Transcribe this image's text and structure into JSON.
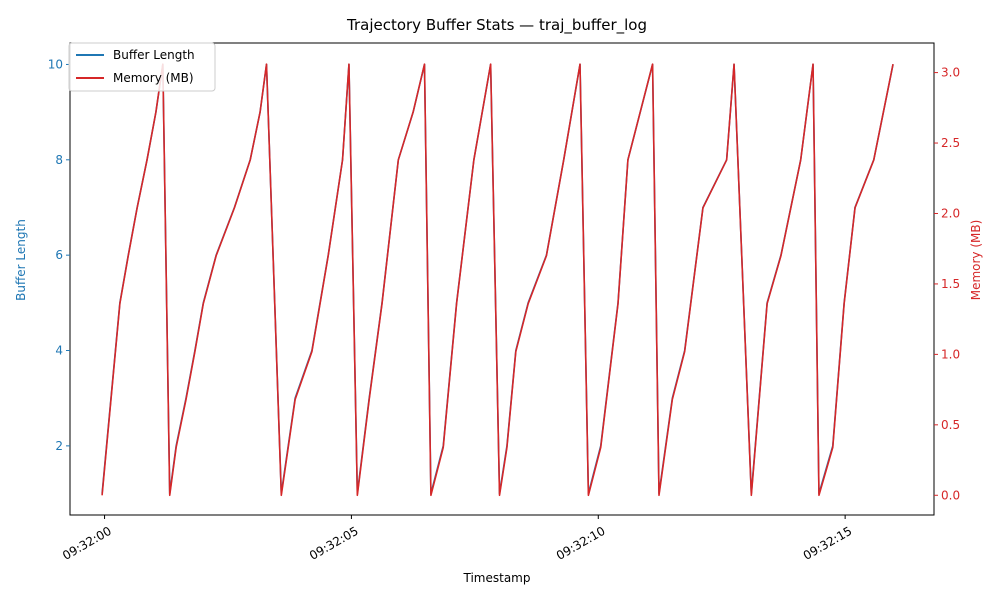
{
  "chart_data": {
    "type": "line",
    "title": "Trajectory Buffer Stats — traj_buffer_log",
    "xlabel": "Timestamp",
    "ylabel_left": "Buffer Length",
    "ylabel_right": "Memory (MB)",
    "x_unit": "seconds after 09:32:00",
    "xlim": [
      -0.7,
      16.8
    ],
    "ylim_left": [
      0.55,
      10.45
    ],
    "ylim_right": [
      -0.14,
      3.21
    ],
    "x_ticks": [
      {
        "value": 0,
        "label": "09:32:00"
      },
      {
        "value": 5,
        "label": "09:32:05"
      },
      {
        "value": 10,
        "label": "09:32:10"
      },
      {
        "value": 15,
        "label": "09:32:15"
      }
    ],
    "y_ticks_left": [
      {
        "value": 2,
        "label": "2"
      },
      {
        "value": 4,
        "label": "4"
      },
      {
        "value": 6,
        "label": "6"
      },
      {
        "value": 8,
        "label": "8"
      },
      {
        "value": 10,
        "label": "10"
      }
    ],
    "y_ticks_right": [
      {
        "value": 0.0,
        "label": "0.0"
      },
      {
        "value": 0.5,
        "label": "0.5"
      },
      {
        "value": 1.0,
        "label": "1.0"
      },
      {
        "value": 1.5,
        "label": "1.5"
      },
      {
        "value": 2.0,
        "label": "2.0"
      },
      {
        "value": 2.5,
        "label": "2.5"
      },
      {
        "value": 3.0,
        "label": "3.0"
      }
    ],
    "legend": {
      "placement": "upper-left"
    },
    "colors": {
      "buffer": "#1f77b4",
      "memory": "#d62728"
    },
    "series": [
      {
        "name": "Buffer Length",
        "axis": "left",
        "x": [
          -0.05,
          0.13,
          0.31,
          0.48,
          0.66,
          0.86,
          1.04,
          1.18,
          1.32,
          1.45,
          1.65,
          1.83,
          2.0,
          2.26,
          2.63,
          2.95,
          3.15,
          3.28,
          3.58,
          3.86,
          4.2,
          4.53,
          4.82,
          4.95,
          5.12,
          5.36,
          5.62,
          5.95,
          6.25,
          6.48,
          6.61,
          6.86,
          7.13,
          7.48,
          7.82,
          8.0,
          8.15,
          8.33,
          8.58,
          8.95,
          9.3,
          9.63,
          9.8,
          10.05,
          10.4,
          10.6,
          11.1,
          11.23,
          11.5,
          11.75,
          12.12,
          12.6,
          12.75,
          13.1,
          13.42,
          13.7,
          14.1,
          14.35,
          14.47,
          14.75,
          14.98,
          15.2,
          15.58,
          15.97
        ],
        "y": [
          1,
          3,
          5,
          6,
          7,
          8,
          9,
          10,
          1,
          2,
          3,
          4,
          5,
          6,
          7,
          8,
          9,
          10,
          1,
          3,
          4,
          6,
          8,
          10,
          1,
          3,
          5,
          8,
          9,
          10,
          1,
          2,
          5,
          8,
          10,
          1,
          2,
          4,
          5,
          6,
          8,
          10,
          1,
          2,
          5,
          8,
          10,
          1,
          3,
          4,
          7,
          8,
          10,
          1,
          5,
          6,
          8,
          10,
          1,
          2,
          5,
          7,
          8,
          10
        ]
      },
      {
        "name": "Memory (MB)",
        "axis": "right",
        "x": [
          -0.05,
          0.13,
          0.31,
          0.48,
          0.66,
          0.86,
          1.04,
          1.18,
          1.32,
          1.45,
          1.65,
          1.83,
          2.0,
          2.26,
          2.63,
          2.95,
          3.15,
          3.28,
          3.58,
          3.86,
          4.2,
          4.53,
          4.82,
          4.95,
          5.12,
          5.36,
          5.62,
          5.95,
          6.25,
          6.48,
          6.61,
          6.86,
          7.13,
          7.48,
          7.82,
          8.0,
          8.15,
          8.33,
          8.58,
          8.95,
          9.3,
          9.63,
          9.8,
          10.05,
          10.4,
          10.6,
          11.1,
          11.23,
          11.5,
          11.75,
          12.12,
          12.6,
          12.75,
          13.1,
          13.42,
          13.7,
          14.1,
          14.35,
          14.47,
          14.75,
          14.98,
          15.2,
          15.58,
          15.97
        ],
        "y": [
          0.0,
          0.68,
          1.36,
          1.7,
          2.04,
          2.38,
          2.72,
          3.06,
          0.0,
          0.34,
          0.68,
          1.02,
          1.36,
          1.7,
          2.04,
          2.38,
          2.72,
          3.06,
          0.0,
          0.68,
          1.02,
          1.7,
          2.38,
          3.06,
          0.0,
          0.68,
          1.36,
          2.38,
          2.72,
          3.06,
          0.0,
          0.34,
          1.36,
          2.38,
          3.06,
          0.0,
          0.34,
          1.02,
          1.36,
          1.7,
          2.38,
          3.06,
          0.0,
          0.34,
          1.36,
          2.38,
          3.06,
          0.0,
          0.68,
          1.02,
          2.04,
          2.38,
          3.06,
          0.0,
          1.36,
          1.7,
          2.38,
          3.06,
          0.0,
          0.34,
          1.36,
          2.04,
          2.38,
          3.06
        ]
      }
    ]
  }
}
